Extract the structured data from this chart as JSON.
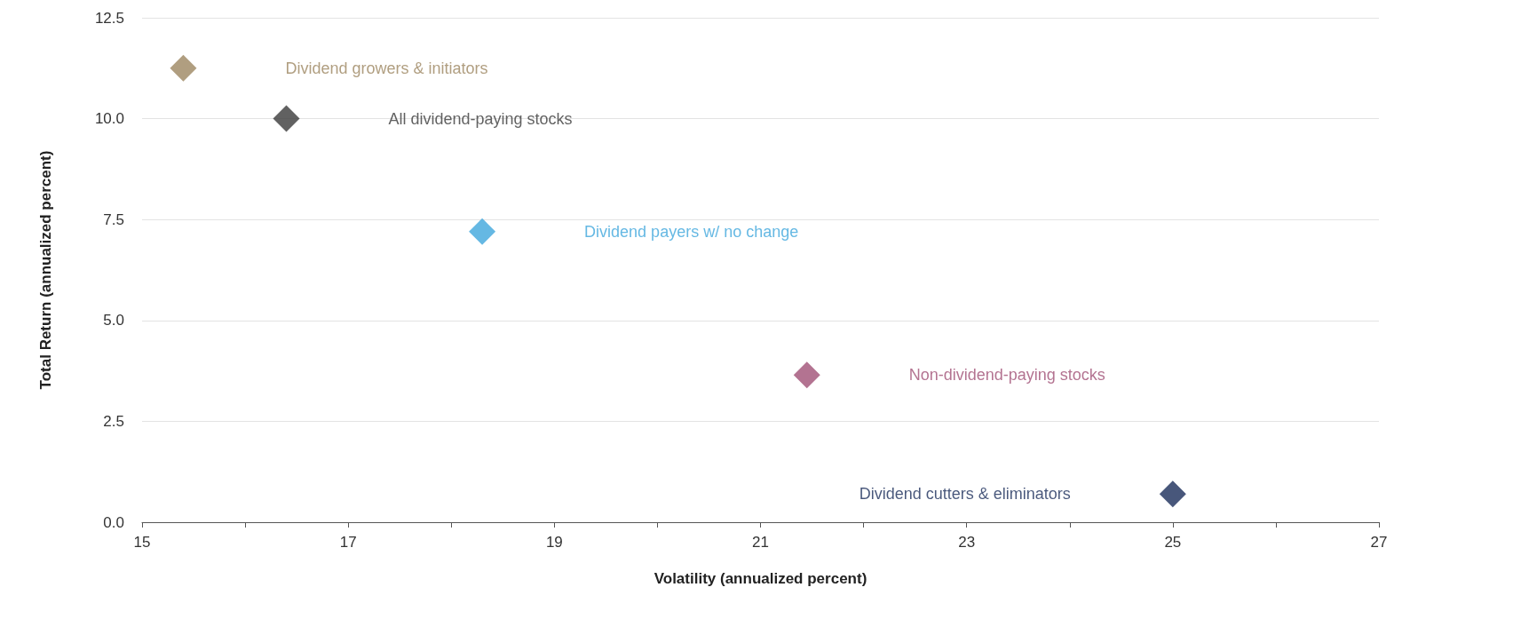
{
  "chart_data": {
    "type": "scatter",
    "xlabel": "Volatility (annualized percent)",
    "ylabel": "Total Return (annualized percent)",
    "xlim": [
      15,
      27
    ],
    "ylim": [
      0,
      12.5
    ],
    "xticks": [
      15,
      {
        "value": 16,
        "label": null
      },
      17,
      {
        "value": 18,
        "label": null
      },
      19,
      {
        "value": 20,
        "label": null
      },
      21,
      {
        "value": 22,
        "label": null
      },
      23,
      {
        "value": 24,
        "label": null
      },
      25,
      {
        "value": 26,
        "label": null
      },
      27
    ],
    "yticks": [
      {
        "value": 0,
        "label": "0.0"
      },
      {
        "value": 2.5,
        "label": "2.5"
      },
      {
        "value": 5,
        "label": "5.0"
      },
      {
        "value": 7.5,
        "label": "7.5"
      },
      {
        "value": 10,
        "label": "10.0"
      },
      {
        "value": 12.5,
        "label": "12.5"
      }
    ],
    "grid": "y",
    "marker": "diamond",
    "legend": false,
    "series": [
      {
        "name": "Dividend growers & initiators",
        "color": "#9c8660",
        "x": [
          15.4
        ],
        "values": [
          11.25
        ]
      },
      {
        "name": "All dividend-paying stocks",
        "color": "#3a3a3a",
        "x": [
          16.4
        ],
        "values": [
          10.0
        ]
      },
      {
        "name": "Dividend payers w/ no change",
        "color": "#3ea6dc",
        "x": [
          18.3
        ],
        "values": [
          7.2
        ]
      },
      {
        "name": "Non-dividend-paying stocks",
        "color": "#a05075",
        "x": [
          21.45
        ],
        "values": [
          3.65
        ]
      },
      {
        "name": "Dividend cutters & eliminators",
        "color": "#1a2d5a",
        "x": [
          25.0
        ],
        "values": [
          0.7
        ]
      }
    ]
  }
}
